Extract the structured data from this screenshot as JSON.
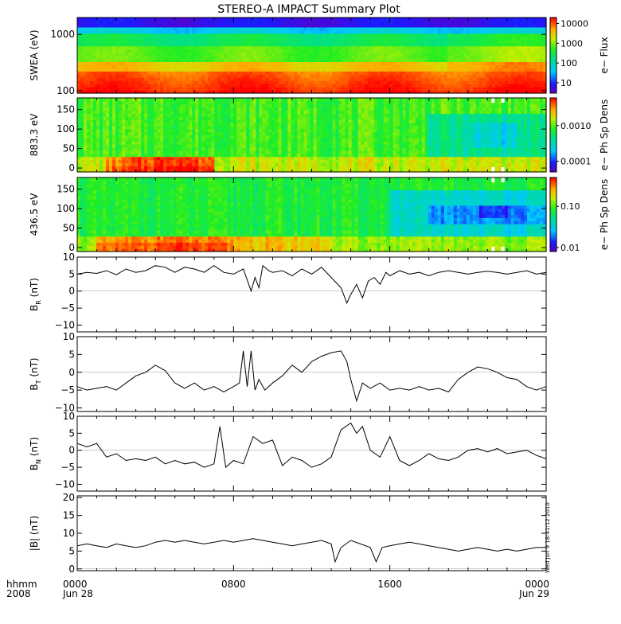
{
  "title": "STEREO-A IMPACT Summary Plot",
  "side_stamp": "Wed Jun  9 18:41:12 2010",
  "x_axis": {
    "unit_label": "hhmm",
    "year_label": "2008",
    "ticks": [
      {
        "t": 0,
        "line1": "0000",
        "line2": "Jun 28"
      },
      {
        "t": 8,
        "line1": "0800",
        "line2": ""
      },
      {
        "t": 16,
        "line1": "1600",
        "line2": ""
      },
      {
        "t": 24,
        "line1": "0000",
        "line2": "Jun 29"
      }
    ],
    "range_hours": [
      0,
      24
    ]
  },
  "chart_data": [
    {
      "type": "heatmap",
      "id": "swea",
      "ylabel": "SWEA (eV)",
      "yscale": "log",
      "ylim": [
        90,
        2000
      ],
      "yticks": [
        {
          "v": 100,
          "label": "100"
        },
        {
          "v": 1000,
          "label": "1000"
        }
      ],
      "colorbar": {
        "label": "e− Flux",
        "scale": "log",
        "range": [
          3,
          20000
        ],
        "ticks": [
          {
            "v": 10000,
            "label": "10000"
          },
          {
            "v": 1000,
            "label": "1000"
          },
          {
            "v": 100,
            "label": "100"
          },
          {
            "v": 10,
            "label": "10"
          }
        ]
      }
    },
    {
      "type": "heatmap",
      "id": "pad883",
      "ylabel": "883.3 eV",
      "yscale": "linear",
      "ylim": [
        -10,
        180
      ],
      "yticks": [
        {
          "v": 0,
          "label": "0"
        },
        {
          "v": 50,
          "label": "50"
        },
        {
          "v": 100,
          "label": "100"
        },
        {
          "v": 150,
          "label": "150"
        }
      ],
      "colorbar": {
        "label": "e− Ph Sp Dens",
        "scale": "log",
        "range": [
          5e-05,
          0.006
        ],
        "ticks": [
          {
            "v": 0.001,
            "label": "0.0010"
          },
          {
            "v": 0.0001,
            "label": "0.0001"
          }
        ]
      }
    },
    {
      "type": "heatmap",
      "id": "pad436",
      "ylabel": "436.5 eV",
      "yscale": "linear",
      "ylim": [
        -10,
        180
      ],
      "yticks": [
        {
          "v": 0,
          "label": "0"
        },
        {
          "v": 50,
          "label": "50"
        },
        {
          "v": 100,
          "label": "100"
        },
        {
          "v": 150,
          "label": "150"
        }
      ],
      "colorbar": {
        "label": "e− Ph Sp Dens",
        "scale": "log",
        "range": [
          0.008,
          0.5
        ],
        "ticks": [
          {
            "v": 0.1,
            "label": "0.10"
          },
          {
            "v": 0.01,
            "label": "0.01"
          }
        ]
      }
    },
    {
      "type": "line",
      "id": "br",
      "ylabel_main": "B",
      "ylabel_sub": "R",
      "ylabel_unit": " (nT)",
      "ylim": [
        -12,
        10
      ],
      "yticks": [
        {
          "v": 10,
          "label": "10"
        },
        {
          "v": 5,
          "label": "5"
        },
        {
          "v": 0,
          "label": "0"
        },
        {
          "v": -5,
          "label": "−5"
        },
        {
          "v": -10,
          "label": "−10"
        }
      ],
      "x": [
        0,
        0.5,
        1,
        1.5,
        2,
        2.5,
        3,
        3.5,
        4,
        4.5,
        5,
        5.5,
        6,
        6.5,
        7,
        7.5,
        8,
        8.5,
        8.9,
        9.1,
        9.3,
        9.5,
        9.8,
        10,
        10.5,
        11,
        11.5,
        12,
        12.5,
        13,
        13.5,
        13.8,
        14,
        14.3,
        14.6,
        14.9,
        15.2,
        15.5,
        15.8,
        16,
        16.5,
        17,
        17.5,
        18,
        18.5,
        19,
        19.5,
        20,
        20.5,
        21,
        21.5,
        22,
        22.5,
        23,
        23.5,
        24
      ],
      "y": [
        5,
        5.5,
        5.2,
        6,
        4.8,
        6.5,
        5.5,
        6,
        7.5,
        7,
        5.5,
        7,
        6.5,
        5.5,
        7.5,
        5.5,
        5,
        6.5,
        0,
        4,
        1,
        7.5,
        6,
        5.5,
        6,
        4.5,
        6.5,
        5,
        7,
        4,
        1,
        -3.5,
        -1,
        2,
        -2,
        3,
        4,
        2,
        5.5,
        4.5,
        6,
        5,
        5.5,
        4.5,
        5.5,
        6,
        5.5,
        5,
        5.5,
        5.8,
        5.5,
        5,
        5.5,
        6,
        5,
        5.5
      ]
    },
    {
      "type": "line",
      "id": "bt",
      "ylabel_main": "B",
      "ylabel_sub": "T",
      "ylabel_unit": " (nT)",
      "ylim": [
        -11,
        10
      ],
      "yticks": [
        {
          "v": 10,
          "label": "10"
        },
        {
          "v": 5,
          "label": "5"
        },
        {
          "v": 0,
          "label": "0"
        },
        {
          "v": -5,
          "label": "−5"
        },
        {
          "v": -10,
          "label": "−10"
        }
      ],
      "x": [
        0,
        0.5,
        1,
        1.5,
        2,
        2.5,
        3,
        3.5,
        4,
        4.5,
        5,
        5.5,
        6,
        6.5,
        7,
        7.5,
        8,
        8.3,
        8.5,
        8.7,
        8.9,
        9.1,
        9.3,
        9.6,
        10,
        10.5,
        11,
        11.5,
        12,
        12.5,
        13,
        13.5,
        13.8,
        14,
        14.3,
        14.6,
        15,
        15.5,
        16,
        16.5,
        17,
        17.5,
        18,
        18.5,
        19,
        19.5,
        20,
        20.5,
        21,
        21.5,
        22,
        22.5,
        23,
        23.5,
        24
      ],
      "y": [
        -4,
        -5,
        -4.5,
        -4,
        -5,
        -3,
        -1,
        0,
        2,
        0.5,
        -3,
        -4.5,
        -3,
        -5,
        -4,
        -5.5,
        -4,
        -3,
        6,
        -4,
        6,
        -5,
        -2,
        -5,
        -3,
        -1,
        2,
        0,
        3,
        4.5,
        5.5,
        6,
        3,
        -2,
        -8,
        -3,
        -4.5,
        -3,
        -5,
        -4.5,
        -5,
        -4,
        -5,
        -4.5,
        -5.5,
        -2,
        0,
        1.5,
        1,
        0,
        -1.5,
        -2,
        -4,
        -5,
        -4
      ]
    },
    {
      "type": "line",
      "id": "bn",
      "ylabel_main": "B",
      "ylabel_sub": "N",
      "ylabel_unit": " (nT)",
      "ylim": [
        -12,
        10
      ],
      "yticks": [
        {
          "v": 10,
          "label": "10"
        },
        {
          "v": 5,
          "label": "5"
        },
        {
          "v": 0,
          "label": "0"
        },
        {
          "v": -5,
          "label": "−5"
        },
        {
          "v": -10,
          "label": "−10"
        }
      ],
      "x": [
        0,
        0.5,
        1,
        1.5,
        2,
        2.5,
        3,
        3.5,
        4,
        4.5,
        5,
        5.5,
        6,
        6.5,
        7,
        7.3,
        7.6,
        8,
        8.5,
        9,
        9.5,
        10,
        10.5,
        11,
        11.5,
        12,
        12.5,
        13,
        13.5,
        14,
        14.3,
        14.6,
        15,
        15.5,
        16,
        16.5,
        17,
        17.5,
        18,
        18.5,
        19,
        19.5,
        20,
        20.5,
        21,
        21.5,
        22,
        22.5,
        23,
        23.5,
        24
      ],
      "y": [
        2,
        1,
        2,
        -2,
        -1,
        -3,
        -2.5,
        -3,
        -2,
        -4,
        -3,
        -4,
        -3.5,
        -5,
        -4,
        7,
        -5,
        -3,
        -4,
        4,
        2,
        3,
        -4.5,
        -2,
        -3,
        -5,
        -4,
        -2,
        6,
        8,
        5,
        7,
        0,
        -2,
        4,
        -3,
        -4.5,
        -3,
        -1,
        -2.5,
        -3,
        -2,
        0,
        0.5,
        -0.5,
        0.5,
        -1,
        -0.5,
        0,
        -1.5,
        -2.5
      ]
    },
    {
      "type": "line",
      "id": "bmag",
      "ylabel_main": "|B|",
      "ylabel_sub": "",
      "ylabel_unit": " (nT)",
      "ylim": [
        -0.5,
        20.5
      ],
      "yticks": [
        {
          "v": 20,
          "label": "20"
        },
        {
          "v": 15,
          "label": "15"
        },
        {
          "v": 10,
          "label": "10"
        },
        {
          "v": 5,
          "label": "5"
        },
        {
          "v": 0,
          "label": "0"
        }
      ],
      "x": [
        0,
        0.5,
        1,
        1.5,
        2,
        2.5,
        3,
        3.5,
        4,
        4.5,
        5,
        5.5,
        6,
        6.5,
        7,
        7.5,
        8,
        8.5,
        9,
        9.5,
        10,
        10.5,
        11,
        11.5,
        12,
        12.5,
        13,
        13.2,
        13.5,
        14,
        14.5,
        15,
        15.3,
        15.6,
        16,
        16.5,
        17,
        17.5,
        18,
        18.5,
        19,
        19.5,
        20,
        20.5,
        21,
        21.5,
        22,
        22.5,
        23,
        23.5,
        24
      ],
      "y": [
        6.5,
        7,
        6.5,
        6,
        7,
        6.5,
        6,
        6.5,
        7.5,
        8,
        7.5,
        8,
        7.5,
        7,
        7.5,
        8,
        7.5,
        8,
        8.5,
        8,
        7.5,
        7,
        6.5,
        7,
        7.5,
        8,
        7,
        2,
        6,
        8,
        7,
        6,
        2,
        6,
        6.5,
        7,
        7.5,
        7,
        6.5,
        6,
        5.5,
        5,
        5.5,
        6,
        5.5,
        5,
        5.5,
        5,
        5.5,
        6,
        6
      ]
    }
  ]
}
